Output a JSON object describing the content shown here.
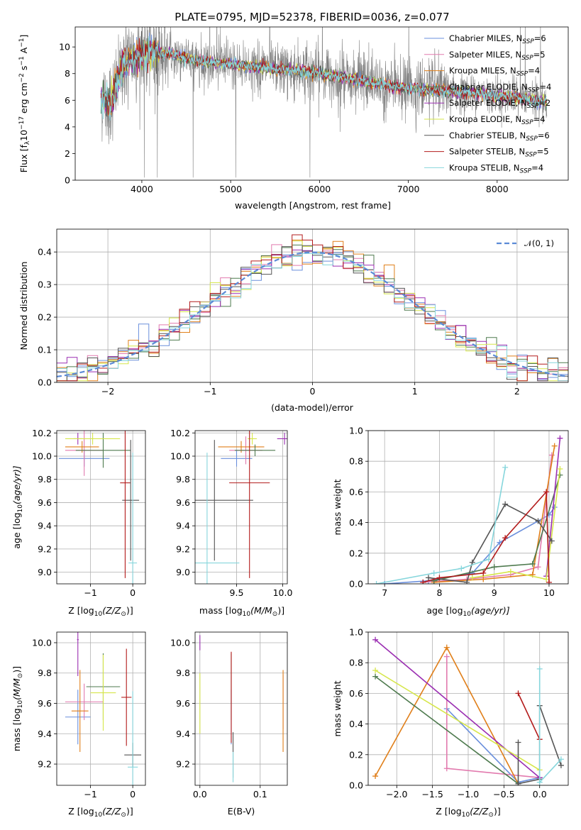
{
  "figure_title": "PLATE=0795, MJD=52378, FIBERID=0036, z=0.077",
  "colors": {
    "c_mil": "#6a8fdc",
    "s_mil": "#e27aae",
    "k_mil": "#e07f1a",
    "c_elo": "#4e7a4e",
    "s_elo": "#9b2fb2",
    "k_elo": "#d6e64a",
    "c_ste": "#555555",
    "s_ste": "#b31b1b",
    "k_ste": "#86d6dc",
    "obs": "#808080",
    "normal": "#5b8ad6"
  },
  "chart_data": [
    {
      "type": "line",
      "id": "spectrum",
      "xlabel": "wavelength [Angstrom, rest frame]",
      "ylabel": "Flux [f",
      "ylabel_sub": "λ",
      "ylabel_mid": "10",
      "ylabel_sup": "−17",
      "ylabel_units": " erg cm",
      "ylabel_sup2": "−2",
      "ylabel_units2": " s",
      "ylabel_sup3": "−1",
      "ylabel_units3": " A",
      "ylabel_sup4": "−1",
      "ylabel_close": "]",
      "xlim": [
        3250,
        8800
      ],
      "ylim": [
        0,
        11.5
      ],
      "xticks": [
        4000,
        5000,
        6000,
        7000,
        8000
      ],
      "yticks": [
        0,
        2,
        4,
        6,
        8,
        10
      ],
      "continuum": {
        "x": [
          3550,
          3650,
          3800,
          3950,
          4100,
          4300,
          4600,
          5000,
          5400,
          5800,
          6200,
          6600,
          7000,
          7400,
          7800,
          8200,
          8500
        ],
        "y": [
          6.2,
          5.8,
          8.8,
          9.3,
          9.6,
          9.5,
          9.0,
          8.7,
          8.4,
          8.2,
          7.8,
          7.3,
          6.9,
          6.7,
          6.5,
          6.2,
          5.9
        ]
      },
      "legend": [
        {
          "name": "Chabrier MILES, N",
          "sub": "SSP",
          "val": "=6",
          "color_key": "c_mil"
        },
        {
          "name": "Salpeter MILES, N",
          "sub": "SSP",
          "val": "=5",
          "color_key": "s_mil"
        },
        {
          "name": "Kroupa MILES, N",
          "sub": "SSP",
          "val": "=4",
          "color_key": "k_mil"
        },
        {
          "name": "Chabrier ELODIE, N",
          "sub": "SSP",
          "val": "=4",
          "color_key": "c_elo"
        },
        {
          "name": "Salpeter ELODIE, N",
          "sub": "SSP",
          "val": "=2",
          "color_key": "s_elo"
        },
        {
          "name": "Kroupa ELODIE, N",
          "sub": "SSP",
          "val": "=4",
          "color_key": "k_elo"
        },
        {
          "name": "Chabrier STELIB, N",
          "sub": "SSP",
          "val": "=6",
          "color_key": "c_ste"
        },
        {
          "name": "Salpeter STELIB, N",
          "sub": "SSP",
          "val": "=5",
          "color_key": "s_ste"
        },
        {
          "name": "Kroupa STELIB, N",
          "sub": "SSP",
          "val": "=4",
          "color_key": "k_ste"
        }
      ]
    },
    {
      "type": "step",
      "id": "residuals",
      "xlabel": "(data-model)/error",
      "ylabel": "Normed distribution",
      "xlim": [
        -2.5,
        2.5
      ],
      "ylim": [
        0,
        0.47
      ],
      "xticks": [
        -2,
        -1,
        0,
        1,
        2
      ],
      "xticklabels": [
        "−2",
        "−1",
        "0",
        "1",
        "2"
      ],
      "yticks": [
        0.0,
        0.1,
        0.2,
        0.3,
        0.4
      ],
      "yticklabels": [
        "0.0",
        "0.1",
        "0.2",
        "0.3",
        "0.4"
      ],
      "bin_width": 0.1,
      "legend_label": "𝒩(0, 1)"
    },
    {
      "type": "errorbar",
      "id": "age_vs_Z",
      "xlabel": "Z [log",
      "xlabel_sub": "10",
      "xlabel_rest": "(Z/Z",
      "xlabel_sub2": "⊙",
      "xlabel_close": ")]",
      "ylabel": "age  [log",
      "ylabel_sub": "10",
      "ylabel_rest": "(age/yr)]",
      "xlim": [
        -1.8,
        0.3
      ],
      "ylim": [
        8.9,
        10.22
      ],
      "xticks": [
        -1,
        0
      ],
      "xticklabels": [
        "−1",
        "0"
      ],
      "yticks": [
        9.0,
        9.2,
        9.4,
        9.6,
        9.8,
        10.0,
        10.2
      ],
      "yticklabels": [
        "9.0",
        "9.2",
        "9.4",
        "9.6",
        "9.8",
        "10.0",
        "10.2"
      ],
      "points": [
        {
          "c": "c_mil",
          "x": -1.15,
          "xerr": 0.6,
          "y": 9.98,
          "yerr": 0.07
        },
        {
          "c": "s_mil",
          "x": -1.15,
          "xerr": 0.45,
          "y": 10.05,
          "yerr": 0.22
        },
        {
          "c": "k_mil",
          "x": -1.2,
          "xerr": 0.4,
          "y": 10.08,
          "yerr": 0.05
        },
        {
          "c": "c_elo",
          "x": -0.7,
          "xerr": 0.65,
          "y": 10.05,
          "yerr": 0.15
        },
        {
          "c": "s_elo",
          "x": -1.3,
          "xerr": 0.1,
          "y": 10.15,
          "yerr": 0.05
        },
        {
          "c": "k_elo",
          "x": -0.95,
          "xerr": 0.65,
          "y": 10.15,
          "yerr": 0.05
        },
        {
          "c": "c_ste",
          "x": -0.05,
          "xerr": 0.2,
          "y": 9.62,
          "yerr": 0.52
        },
        {
          "c": "s_ste",
          "x": -0.18,
          "xerr": 0.12,
          "y": 9.77,
          "yerr": 0.82
        },
        {
          "c": "k_ste",
          "x": 0.0,
          "xerr": 0.1,
          "y": 9.08,
          "yerr": 0.95
        }
      ]
    },
    {
      "type": "errorbar",
      "id": "age_vs_mass",
      "xlabel": "mass [log",
      "xlabel_sub": "10",
      "xlabel_rest": "(M/M",
      "xlabel_sub2": "⊙",
      "xlabel_close": ")]",
      "xlim": [
        9.05,
        10.05
      ],
      "ylim": [
        8.9,
        10.22
      ],
      "xticks": [
        9.5,
        10.0
      ],
      "xticklabels": [
        "9.5",
        "10.0"
      ],
      "yticks": [
        9.0,
        9.2,
        9.4,
        9.6,
        9.8,
        10.0,
        10.2
      ],
      "yticklabels": [
        "9.0",
        "9.2",
        "9.4",
        "9.6",
        "9.8",
        "10.0",
        "10.2"
      ],
      "points": [
        {
          "c": "c_mil",
          "x": 9.5,
          "xerr": 0.17,
          "y": 9.98,
          "yerr": 0.07
        },
        {
          "c": "s_mil",
          "x": 9.6,
          "xerr": 0.18,
          "y": 10.05,
          "yerr": 0.12
        },
        {
          "c": "k_mil",
          "x": 9.55,
          "xerr": 0.25,
          "y": 10.08,
          "yerr": 0.05
        },
        {
          "c": "c_elo",
          "x": 9.7,
          "xerr": 0.22,
          "y": 10.05,
          "yerr": 0.05
        },
        {
          "c": "s_elo",
          "x": 10.02,
          "xerr": 0.08,
          "y": 10.15,
          "yerr": 0.05
        },
        {
          "c": "k_elo",
          "x": 9.67,
          "xerr": 0.05,
          "y": 10.15,
          "yerr": 0.05
        },
        {
          "c": "c_ste",
          "x": 9.26,
          "xerr": 0.42,
          "y": 9.62,
          "yerr": 0.52
        },
        {
          "c": "s_ste",
          "x": 9.64,
          "xerr": 0.22,
          "y": 9.77,
          "yerr": 0.82
        },
        {
          "c": "k_ste",
          "x": 9.18,
          "xerr": 0.35,
          "y": 9.08,
          "yerr": 0.95
        }
      ]
    },
    {
      "type": "line",
      "id": "massweight_vs_age",
      "xlabel": "age  [log",
      "xlabel_sub": "10",
      "xlabel_rest": "(age/yr)]",
      "ylabel": "mass weight",
      "xlim": [
        6.7,
        10.35
      ],
      "ylim": [
        0,
        1.0
      ],
      "xticks": [
        7,
        8,
        9,
        10
      ],
      "xticklabels": [
        "7",
        "8",
        "9",
        "10"
      ],
      "yticks": [
        0.0,
        0.2,
        0.4,
        0.6,
        0.8,
        1.0
      ],
      "yticklabels": [
        "0.0",
        "0.2",
        "0.4",
        "0.6",
        "0.8",
        "1.0"
      ],
      "series": [
        {
          "c": "c_mil",
          "x": [
            7.0,
            7.8,
            8.6,
            9.1,
            10.0,
            10.1
          ],
          "y": [
            0.0,
            0.02,
            0.07,
            0.27,
            0.45,
            0.5
          ]
        },
        {
          "c": "s_mil",
          "x": [
            7.7,
            8.5,
            9.3,
            9.8,
            10.05
          ],
          "y": [
            0.01,
            0.03,
            0.06,
            0.11,
            0.84
          ]
        },
        {
          "c": "k_mil",
          "x": [
            7.9,
            8.8,
            9.7,
            10.1
          ],
          "y": [
            0.01,
            0.03,
            0.06,
            0.9
          ]
        },
        {
          "c": "c_elo",
          "x": [
            7.9,
            9.0,
            9.7,
            10.2
          ],
          "y": [
            0.02,
            0.11,
            0.13,
            0.71
          ]
        },
        {
          "c": "s_elo",
          "x": [
            9.95,
            10.2
          ],
          "y": [
            0.05,
            0.95
          ]
        },
        {
          "c": "k_elo",
          "x": [
            8.6,
            9.3,
            9.95,
            10.2
          ],
          "y": [
            0.04,
            0.08,
            0.03,
            0.75
          ]
        },
        {
          "c": "c_ste",
          "x": [
            7.8,
            8.5,
            8.6,
            9.2,
            9.8,
            10.05
          ],
          "y": [
            0.04,
            0.01,
            0.14,
            0.52,
            0.41,
            0.28
          ]
        },
        {
          "c": "s_ste",
          "x": [
            7.7,
            8.0,
            8.8,
            9.2,
            9.95,
            10.0
          ],
          "y": [
            0.01,
            0.04,
            0.07,
            0.3,
            0.6,
            0.01
          ]
        },
        {
          "c": "k_ste",
          "x": [
            6.85,
            7.9,
            8.4,
            8.9,
            9.2
          ],
          "y": [
            0.0,
            0.07,
            0.1,
            0.16,
            0.76
          ]
        }
      ]
    },
    {
      "type": "errorbar",
      "id": "mass_vs_Z",
      "xlabel": "Z [log",
      "xlabel_sub": "10",
      "xlabel_rest": "(Z/Z",
      "xlabel_sub2": "⊙",
      "xlabel_close": ")]",
      "ylabel": "mass [log",
      "ylabel_sub": "10",
      "ylabel_rest": "(M/M",
      "ylabel_sub2": "⊙",
      "ylabel_close": ")]",
      "xlim": [
        -1.8,
        0.3
      ],
      "ylim": [
        9.06,
        10.07
      ],
      "xticks": [
        -1,
        0
      ],
      "xticklabels": [
        "−1",
        "0"
      ],
      "yticks": [
        9.2,
        9.4,
        9.6,
        9.8,
        10.0
      ],
      "yticklabels": [
        "9.2",
        "9.4",
        "9.6",
        "9.8",
        "10.0"
      ],
      "points": [
        {
          "c": "c_mil",
          "x": -1.3,
          "xerr": 0.3,
          "y": 9.51,
          "yerr": 0.18
        },
        {
          "c": "s_mil",
          "x": -1.15,
          "xerr": 0.45,
          "y": 9.61,
          "yerr": 0.12
        },
        {
          "c": "k_mil",
          "x": -1.25,
          "xerr": 0.2,
          "y": 9.55,
          "yerr": 0.27
        },
        {
          "c": "c_elo",
          "x": -0.7,
          "xerr": 0.4,
          "y": 9.71,
          "yerr": 0.22
        },
        {
          "c": "s_elo",
          "x": -1.3,
          "xerr": 0.02,
          "y": 10.02,
          "yerr": 0.24
        },
        {
          "c": "k_elo",
          "x": -0.7,
          "xerr": 0.3,
          "y": 9.67,
          "yerr": 0.25
        },
        {
          "c": "c_ste",
          "x": 0.0,
          "xerr": 0.2,
          "y": 9.26,
          "yerr": 0.08
        },
        {
          "c": "s_ste",
          "x": -0.15,
          "xerr": 0.12,
          "y": 9.64,
          "yerr": 0.32
        },
        {
          "c": "k_ste",
          "x": 0.0,
          "xerr": 0.12,
          "y": 9.18,
          "yerr": 0.5
        }
      ]
    },
    {
      "type": "errorbar",
      "id": "mass_vs_ebv",
      "xlabel": "E(B-V)",
      "xlim": [
        -0.008,
        0.145
      ],
      "ylim": [
        9.06,
        10.07
      ],
      "xticks": [
        0.0,
        0.1
      ],
      "xticklabels": [
        "0.0",
        "0.1"
      ],
      "yticks": [
        9.2,
        9.4,
        9.6,
        9.8,
        10.0
      ],
      "yticklabels": [
        "9.2",
        "9.4",
        "9.6",
        "9.8",
        "10.0"
      ],
      "points": [
        {
          "c": "c_mil",
          "x": 0.052,
          "xerr": 0,
          "y": 9.51,
          "yerr": 0.18
        },
        {
          "c": "s_mil",
          "x": 0.138,
          "xerr": 0,
          "y": 9.61,
          "yerr": 0.18
        },
        {
          "c": "k_mil",
          "x": 0.138,
          "xerr": 0,
          "y": 9.55,
          "yerr": 0.27
        },
        {
          "c": "c_elo",
          "x": 0.052,
          "xerr": 0,
          "y": 9.71,
          "yerr": 0.22
        },
        {
          "c": "s_elo",
          "x": 0.0,
          "xerr": 0,
          "y": 10.0,
          "yerr": 0.05
        },
        {
          "c": "k_elo",
          "x": 0.0,
          "xerr": 0,
          "y": 9.6,
          "yerr": 0.2
        },
        {
          "c": "c_ste",
          "x": 0.055,
          "xerr": 0,
          "y": 9.26,
          "yerr": 0.15
        },
        {
          "c": "s_ste",
          "x": 0.052,
          "xerr": 0,
          "y": 9.64,
          "yerr": 0.3
        },
        {
          "c": "k_ste",
          "x": 0.055,
          "xerr": 0,
          "y": 9.18,
          "yerr": 0.1
        }
      ]
    },
    {
      "type": "line",
      "id": "massweight_vs_Z",
      "xlabel": "Z [log",
      "xlabel_sub": "10",
      "xlabel_rest": "(Z/Z",
      "xlabel_sub2": "⊙",
      "xlabel_close": ")]",
      "ylabel": "mass weight",
      "xlim": [
        -2.4,
        0.4
      ],
      "ylim": [
        0,
        1.0
      ],
      "xticks": [
        -2.0,
        -1.5,
        -1.0,
        -0.5,
        0.0
      ],
      "xticklabels": [
        "−2.0",
        "−1.5",
        "−1.0",
        "−0.5",
        "0.0"
      ],
      "yticks": [
        0.0,
        0.2,
        0.4,
        0.6,
        0.8,
        1.0
      ],
      "yticklabels": [
        "0.0",
        "0.2",
        "0.4",
        "0.6",
        "0.8",
        "1.0"
      ],
      "series": [
        {
          "c": "c_mil",
          "x": [
            -1.3,
            -0.3,
            0.0
          ],
          "y": [
            0.5,
            0.02,
            0.05
          ]
        },
        {
          "c": "s_mil",
          "x": [
            -1.3,
            -1.3,
            0.0
          ],
          "y": [
            0.84,
            0.11,
            0.05
          ]
        },
        {
          "c": "k_mil",
          "x": [
            -2.3,
            -1.3,
            -0.3
          ],
          "y": [
            0.06,
            0.9,
            0.01
          ]
        },
        {
          "c": "c_elo",
          "x": [
            -2.3,
            -0.3
          ],
          "y": [
            0.71,
            0.01
          ]
        },
        {
          "c": "s_elo",
          "x": [
            -2.3,
            0.0
          ],
          "y": [
            0.95,
            0.05
          ]
        },
        {
          "c": "k_elo",
          "x": [
            -2.3,
            0.0
          ],
          "y": [
            0.75,
            0.1
          ]
        },
        {
          "c": "c_ste",
          "x": [
            -0.3,
            -0.3,
            0.0,
            0.0,
            0.3
          ],
          "y": [
            0.28,
            0.01,
            0.04,
            0.52,
            0.13
          ]
        },
        {
          "c": "s_ste",
          "x": [
            -0.3,
            0.0
          ],
          "y": [
            0.6,
            0.3
          ]
        },
        {
          "c": "k_ste",
          "x": [
            0.0,
            0.0,
            0.3
          ],
          "y": [
            0.76,
            0.02,
            0.17
          ]
        }
      ]
    }
  ]
}
